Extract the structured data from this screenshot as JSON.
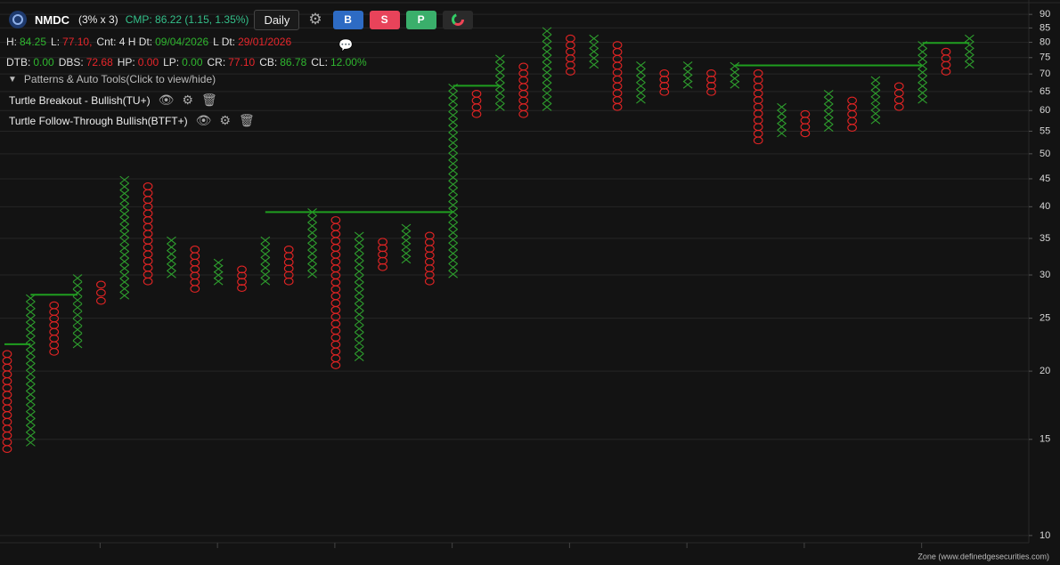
{
  "header": {
    "symbol": "NMDC",
    "box": "(3% x 3)",
    "cmp": "CMP: 86.22 (1.15, 1.35%)",
    "timeframe": "Daily",
    "buttons": [
      "B",
      "S",
      "P"
    ]
  },
  "stats_line1": [
    {
      "label": "H:",
      "value": "84.25",
      "color": "green"
    },
    {
      "label": "L:",
      "value": "77.10,",
      "color": "red"
    },
    {
      "label": "Cnt: 4 H Dt:",
      "value": "09/04/2026",
      "color": "green"
    },
    {
      "label": "L Dt:",
      "value": "29/01/2026",
      "color": "red"
    }
  ],
  "stats_line2": [
    {
      "label": "DTB:",
      "value": "0.00",
      "color": "green"
    },
    {
      "label": "DBS:",
      "value": "72.68",
      "color": "red"
    },
    {
      "label": "HP:",
      "value": "0.00",
      "color": "red"
    },
    {
      "label": "LP:",
      "value": "0.00",
      "color": "green"
    },
    {
      "label": "CR:",
      "value": "77.10",
      "color": "red"
    },
    {
      "label": "CB:",
      "value": "86.78",
      "color": "green"
    },
    {
      "label": "CL:",
      "value": "12.00%",
      "color": "green"
    }
  ],
  "patterns_toggle": "Patterns & Auto Tools(Click to view/hide)",
  "patterns": [
    "Turtle Breakout - Bullish(TU+)",
    "Turtle Follow-Through Bullish(BTFT+)"
  ],
  "footer": "Zone (www.definedgesecurities.com)",
  "chart_data": {
    "type": "pnf",
    "log_scale": true,
    "grid": true,
    "ylim": [
      9.7,
      92.8
    ],
    "yticks": [
      10,
      15,
      20,
      25,
      30,
      35,
      40,
      45,
      50,
      55,
      60,
      65,
      70,
      75,
      80,
      85,
      90
    ],
    "x_color": "#2e9e2e",
    "o_color": "#e02424",
    "level_color": "#1f9e1f",
    "columns": [
      {
        "type": "O",
        "high": 21.5,
        "low": 14.4
      },
      {
        "type": "X",
        "high": 27.2,
        "low": 14.8
      },
      {
        "type": "O",
        "high": 26.4,
        "low": 21.7
      },
      {
        "type": "X",
        "high": 29.6,
        "low": 22.4
      },
      {
        "type": "O",
        "high": 28.8,
        "low": 26.9
      },
      {
        "type": "X",
        "high": 44.8,
        "low": 27.5
      },
      {
        "type": "O",
        "high": 43.6,
        "low": 29.2
      },
      {
        "type": "X",
        "high": 34.7,
        "low": 30.1
      },
      {
        "type": "O",
        "high": 33.4,
        "low": 28.3
      },
      {
        "type": "X",
        "high": 31.6,
        "low": 29.2
      },
      {
        "type": "O",
        "high": 30.7,
        "low": 28.4
      },
      {
        "type": "X",
        "high": 34.7,
        "low": 29.2
      },
      {
        "type": "O",
        "high": 33.4,
        "low": 29.2
      },
      {
        "type": "X",
        "high": 39.1,
        "low": 30.1
      },
      {
        "type": "O",
        "high": 37.8,
        "low": 20.5
      },
      {
        "type": "X",
        "high": 35.4,
        "low": 21.2
      },
      {
        "type": "O",
        "high": 34.5,
        "low": 31.0
      },
      {
        "type": "X",
        "high": 36.6,
        "low": 32.0
      },
      {
        "type": "O",
        "high": 35.4,
        "low": 29.2
      },
      {
        "type": "X",
        "high": 66.1,
        "low": 30.1
      },
      {
        "type": "O",
        "high": 64.4,
        "low": 59.1
      },
      {
        "type": "X",
        "high": 74.7,
        "low": 60.9
      },
      {
        "type": "O",
        "high": 72.2,
        "low": 59.1
      },
      {
        "type": "X",
        "high": 83.9,
        "low": 60.9
      },
      {
        "type": "O",
        "high": 81.3,
        "low": 70.7
      },
      {
        "type": "X",
        "high": 81.3,
        "low": 72.8
      },
      {
        "type": "O",
        "high": 79.1,
        "low": 60.9
      },
      {
        "type": "X",
        "high": 72.6,
        "low": 62.8
      },
      {
        "type": "O",
        "high": 70.2,
        "low": 64.9
      },
      {
        "type": "X",
        "high": 72.6,
        "low": 66.9
      },
      {
        "type": "O",
        "high": 70.2,
        "low": 64.9
      },
      {
        "type": "X",
        "high": 72.4,
        "low": 66.9
      },
      {
        "type": "O",
        "high": 70.2,
        "low": 52.9
      },
      {
        "type": "X",
        "high": 60.9,
        "low": 54.5
      },
      {
        "type": "O",
        "high": 59.1,
        "low": 54.5
      },
      {
        "type": "X",
        "high": 64.4,
        "low": 55.8
      },
      {
        "type": "O",
        "high": 62.6,
        "low": 55.8
      },
      {
        "type": "X",
        "high": 68.2,
        "low": 57.6
      },
      {
        "type": "O",
        "high": 66.5,
        "low": 60.9
      },
      {
        "type": "X",
        "high": 79.1,
        "low": 62.8
      },
      {
        "type": "O",
        "high": 76.9,
        "low": 70.7
      },
      {
        "type": "X",
        "high": 81.3,
        "low": 72.8
      }
    ],
    "levels": [
      {
        "value": 22.4,
        "start": 0,
        "end": 1
      },
      {
        "value": 27.6,
        "start": 1,
        "end": 3
      },
      {
        "value": 39.1,
        "start": 11,
        "end": 19
      },
      {
        "value": 66.6,
        "start": 19,
        "end": 21
      },
      {
        "value": 72.6,
        "start": 31,
        "end": 39
      },
      {
        "value": 79.8,
        "start": 39,
        "end": 41
      }
    ]
  }
}
